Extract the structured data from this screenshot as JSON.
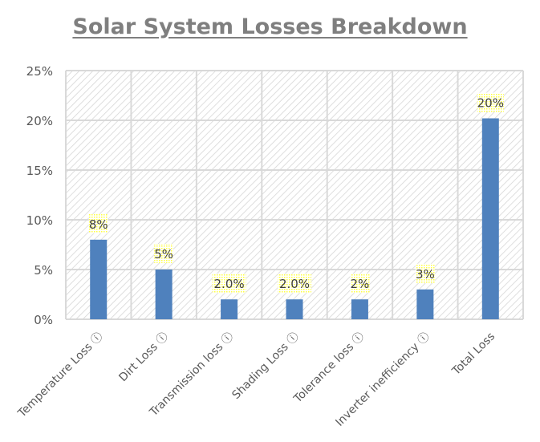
{
  "chart_data": {
    "type": "bar",
    "title": "Solar System Losses Breakdown",
    "categories": [
      "Temperature Loss ⓘ",
      "Dirt Loss ⓘ",
      "Transmission loss ⓘ",
      "Shading Loss ⓘ",
      "Tolerance loss ⓘ",
      "Inverter inefficiency ⓘ",
      "Total Loss"
    ],
    "values": [
      8,
      5,
      2,
      2,
      2,
      3,
      20.2
    ],
    "data_labels": [
      "8%",
      "5%",
      "2.0%",
      "2.0%",
      "2%",
      "3%",
      "20%"
    ],
    "xlabel": "",
    "ylabel": "",
    "ylim": [
      0,
      25
    ],
    "yticks": [
      "0%",
      "5%",
      "10%",
      "15%",
      "20%",
      "25%"
    ],
    "grid": true,
    "legend": "none",
    "colors": {
      "bar": "#4f81bd",
      "grid": "#d9d9d9",
      "title": "#7f7f7f",
      "label_highlight": "#ffff66"
    }
  }
}
